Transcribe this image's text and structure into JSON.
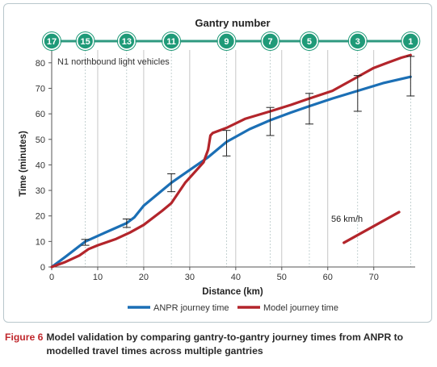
{
  "chart_data": {
    "type": "line",
    "title": "Gantry number",
    "annotation": "N1 northbound light vehicles",
    "speed_annotation": "56 km/h",
    "xlabel": "Distance (km)",
    "ylabel": "Time (minutes)",
    "xlim": [
      0,
      79
    ],
    "ylim": [
      0,
      85
    ],
    "xticks": [
      0,
      10,
      20,
      30,
      40,
      50,
      60,
      70
    ],
    "yticks": [
      0,
      10,
      20,
      30,
      40,
      50,
      60,
      70,
      80
    ],
    "grid": "x-only",
    "legend_position": "bottom",
    "gantries": [
      {
        "label": "17",
        "x": 0
      },
      {
        "label": "15",
        "x": 7.3
      },
      {
        "label": "13",
        "x": 16.3
      },
      {
        "label": "11",
        "x": 26
      },
      {
        "label": "9",
        "x": 38
      },
      {
        "label": "7",
        "x": 47.5
      },
      {
        "label": "5",
        "x": 56
      },
      {
        "label": "3",
        "x": 66.5
      },
      {
        "label": "1",
        "x": 78
      }
    ],
    "series": [
      {
        "name": "ANPR journey time",
        "color": "#1b6fb5",
        "x": [
          0,
          3,
          7.3,
          11,
          16.3,
          18,
          20,
          26,
          30,
          34,
          38,
          43,
          47.5,
          52,
          56,
          61,
          66.5,
          72,
          78
        ],
        "y": [
          0,
          4,
          10,
          13,
          17.2,
          19.5,
          24,
          33,
          38,
          43,
          49,
          54,
          57.5,
          60.5,
          63,
          66,
          69,
          72,
          74.5
        ]
      },
      {
        "name": "Model journey time",
        "color": "#b3252b",
        "x": [
          0,
          3,
          6,
          8,
          10,
          14,
          17,
          20,
          24,
          26,
          29,
          31,
          33,
          34,
          34.5,
          35,
          38,
          42,
          47.5,
          52,
          56,
          61,
          65,
          68,
          70,
          73,
          76,
          78
        ],
        "y": [
          0,
          2,
          4.5,
          7,
          8.5,
          11,
          13.5,
          16.5,
          22,
          25,
          33,
          37,
          41,
          46,
          51.5,
          52.5,
          54.5,
          58,
          61,
          63.5,
          66,
          69,
          73,
          76,
          78,
          80,
          82,
          83
        ]
      }
    ],
    "error_bars": [
      {
        "x": 7.3,
        "low": 8.5,
        "high": 10.8
      },
      {
        "x": 16.3,
        "low": 15.5,
        "high": 18.8
      },
      {
        "x": 26,
        "low": 29.5,
        "high": 36.5
      },
      {
        "x": 38,
        "low": 43.5,
        "high": 53.5
      },
      {
        "x": 47.5,
        "low": 51.5,
        "high": 62.5
      },
      {
        "x": 56,
        "low": 56,
        "high": 68
      },
      {
        "x": 66.5,
        "low": 61,
        "high": 75
      },
      {
        "x": 78,
        "low": 67,
        "high": 82.5
      }
    ],
    "speed_line": {
      "color": "#b3252b",
      "x": [
        63.5,
        75.5
      ],
      "y": [
        9.5,
        21.5
      ]
    }
  },
  "caption": {
    "figure_label": "Figure 6",
    "text": "Model validation by comparing gantry-to-gantry journey times from ANPR to modelled travel times across multiple gantries"
  }
}
